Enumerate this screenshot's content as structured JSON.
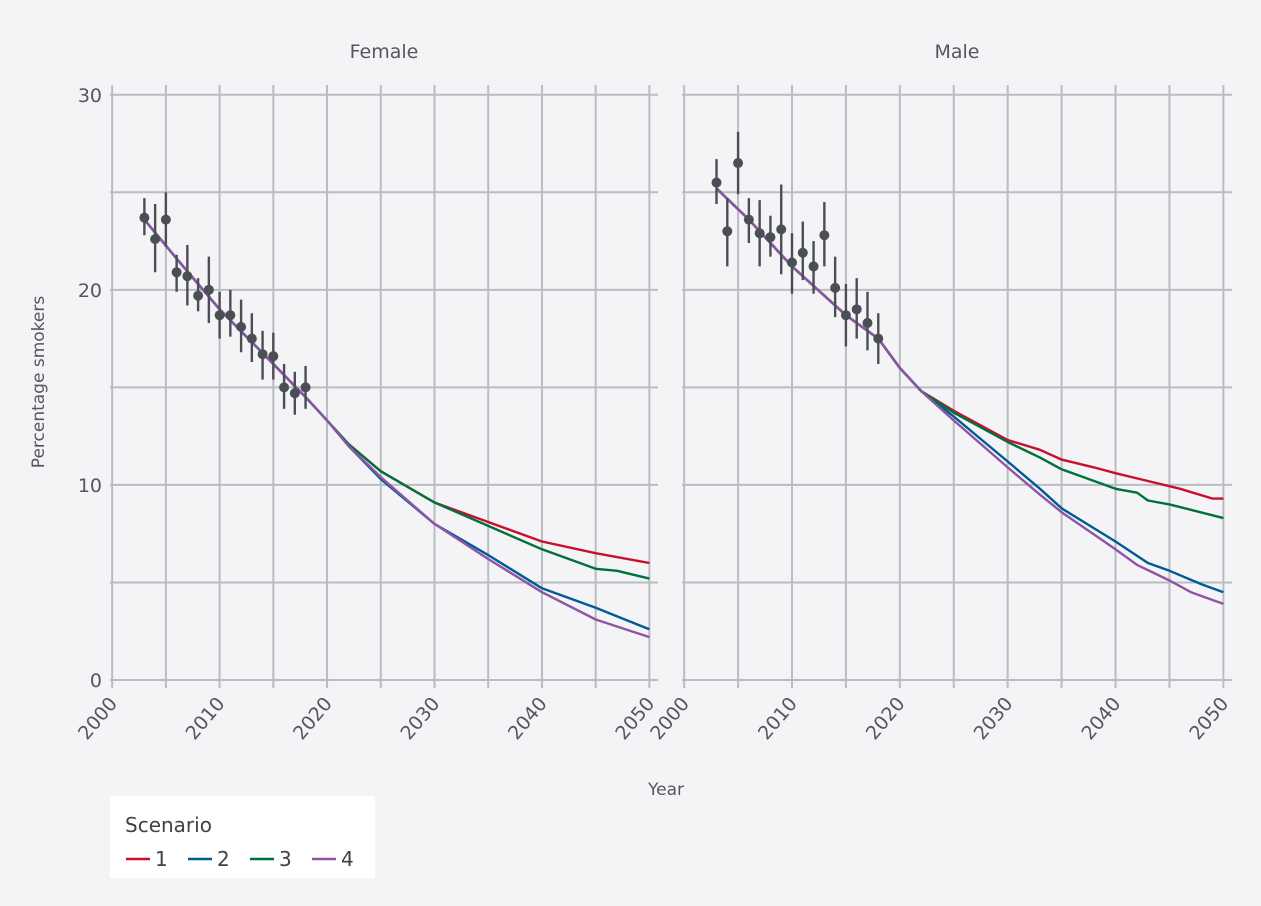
{
  "chart_data": {
    "type": "line",
    "ylabel": "Percentage smokers",
    "xlabel": "Year",
    "x_ticks": [
      2000,
      2010,
      2020,
      2030,
      2040,
      2050
    ],
    "y_ticks": [
      0,
      10,
      20,
      30
    ],
    "xlim": [
      1999.8,
      2050.8
    ],
    "ylim": [
      0,
      30.5
    ],
    "grid": true,
    "legend_position": "bottom-left",
    "legend": {
      "title": "Scenario",
      "entries": [
        {
          "name": "1",
          "color": "#c8102e"
        },
        {
          "name": "2",
          "color": "#005b94"
        },
        {
          "name": "3",
          "color": "#00703c"
        },
        {
          "name": "4",
          "color": "#8e55a5"
        }
      ]
    },
    "panels": [
      {
        "title": "Female",
        "observed": [
          {
            "x": 2003,
            "y": 23.7,
            "lo": 22.8,
            "hi": 24.7
          },
          {
            "x": 2004,
            "y": 22.6,
            "lo": 20.9,
            "hi": 24.4
          },
          {
            "x": 2005,
            "y": 23.6,
            "lo": 22.2,
            "hi": 25.0
          },
          {
            "x": 2006,
            "y": 20.9,
            "lo": 19.9,
            "hi": 21.8
          },
          {
            "x": 2007,
            "y": 20.7,
            "lo": 19.2,
            "hi": 22.3
          },
          {
            "x": 2008,
            "y": 19.7,
            "lo": 18.9,
            "hi": 20.6
          },
          {
            "x": 2009,
            "y": 20.0,
            "lo": 18.3,
            "hi": 21.7
          },
          {
            "x": 2010,
            "y": 18.7,
            "lo": 17.5,
            "hi": 19.9
          },
          {
            "x": 2011,
            "y": 18.7,
            "lo": 17.6,
            "hi": 20.0
          },
          {
            "x": 2012,
            "y": 18.1,
            "lo": 16.8,
            "hi": 19.5
          },
          {
            "x": 2013,
            "y": 17.5,
            "lo": 16.3,
            "hi": 18.8
          },
          {
            "x": 2014,
            "y": 16.7,
            "lo": 15.4,
            "hi": 17.9
          },
          {
            "x": 2015,
            "y": 16.6,
            "lo": 15.4,
            "hi": 17.8
          },
          {
            "x": 2016,
            "y": 15.0,
            "lo": 13.9,
            "hi": 16.2
          },
          {
            "x": 2017,
            "y": 14.7,
            "lo": 13.6,
            "hi": 15.8
          },
          {
            "x": 2018,
            "y": 15.0,
            "lo": 13.9,
            "hi": 16.1
          }
        ],
        "series": [
          {
            "name": "1",
            "points": [
              [
                2003,
                23.6
              ],
              [
                2006,
                21.6
              ],
              [
                2010,
                19.0
              ],
              [
                2015,
                16.2
              ],
              [
                2018,
                14.5
              ],
              [
                2020,
                13.3
              ],
              [
                2022,
                12.1
              ],
              [
                2025,
                10.7
              ],
              [
                2030,
                9.1
              ],
              [
                2035,
                8.1
              ],
              [
                2040,
                7.1
              ],
              [
                2045,
                6.5
              ],
              [
                2050,
                6.0
              ]
            ]
          },
          {
            "name": "2",
            "points": [
              [
                2003,
                23.6
              ],
              [
                2006,
                21.6
              ],
              [
                2010,
                19.0
              ],
              [
                2015,
                16.2
              ],
              [
                2018,
                14.5
              ],
              [
                2020,
                13.3
              ],
              [
                2022,
                12.0
              ],
              [
                2025,
                10.3
              ],
              [
                2030,
                8.0
              ],
              [
                2035,
                6.4
              ],
              [
                2040,
                4.7
              ],
              [
                2045,
                3.7
              ],
              [
                2050,
                2.6
              ]
            ]
          },
          {
            "name": "3",
            "points": [
              [
                2003,
                23.6
              ],
              [
                2006,
                21.6
              ],
              [
                2010,
                19.0
              ],
              [
                2015,
                16.2
              ],
              [
                2018,
                14.5
              ],
              [
                2020,
                13.3
              ],
              [
                2022,
                12.1
              ],
              [
                2025,
                10.7
              ],
              [
                2030,
                9.1
              ],
              [
                2035,
                7.9
              ],
              [
                2040,
                6.7
              ],
              [
                2045,
                5.7
              ],
              [
                2047,
                5.6
              ],
              [
                2050,
                5.2
              ]
            ]
          },
          {
            "name": "4",
            "points": [
              [
                2003,
                23.6
              ],
              [
                2006,
                21.6
              ],
              [
                2010,
                19.0
              ],
              [
                2015,
                16.2
              ],
              [
                2018,
                14.5
              ],
              [
                2020,
                13.3
              ],
              [
                2022,
                12.0
              ],
              [
                2025,
                10.4
              ],
              [
                2030,
                8.0
              ],
              [
                2035,
                6.2
              ],
              [
                2040,
                4.5
              ],
              [
                2045,
                3.1
              ],
              [
                2050,
                2.2
              ]
            ]
          }
        ]
      },
      {
        "title": "Male",
        "observed": [
          {
            "x": 2003,
            "y": 25.5,
            "lo": 24.4,
            "hi": 26.7
          },
          {
            "x": 2004,
            "y": 23.0,
            "lo": 21.2,
            "hi": 24.7
          },
          {
            "x": 2005,
            "y": 26.5,
            "lo": 24.9,
            "hi": 28.1
          },
          {
            "x": 2006,
            "y": 23.6,
            "lo": 22.4,
            "hi": 24.7
          },
          {
            "x": 2007,
            "y": 22.9,
            "lo": 21.2,
            "hi": 24.6
          },
          {
            "x": 2008,
            "y": 22.7,
            "lo": 21.7,
            "hi": 23.8
          },
          {
            "x": 2009,
            "y": 23.1,
            "lo": 20.8,
            "hi": 25.4
          },
          {
            "x": 2010,
            "y": 21.4,
            "lo": 19.8,
            "hi": 22.9
          },
          {
            "x": 2011,
            "y": 21.9,
            "lo": 20.5,
            "hi": 23.5
          },
          {
            "x": 2012,
            "y": 21.2,
            "lo": 19.8,
            "hi": 22.5
          },
          {
            "x": 2013,
            "y": 22.8,
            "lo": 21.2,
            "hi": 24.5
          },
          {
            "x": 2014,
            "y": 20.1,
            "lo": 18.6,
            "hi": 21.7
          },
          {
            "x": 2015,
            "y": 18.7,
            "lo": 17.1,
            "hi": 20.3
          },
          {
            "x": 2016,
            "y": 19.0,
            "lo": 17.5,
            "hi": 20.6
          },
          {
            "x": 2017,
            "y": 18.3,
            "lo": 16.9,
            "hi": 19.9
          },
          {
            "x": 2018,
            "y": 17.5,
            "lo": 16.2,
            "hi": 18.8
          }
        ],
        "series": [
          {
            "name": "1",
            "points": [
              [
                2003,
                25.2
              ],
              [
                2006,
                23.6
              ],
              [
                2010,
                21.2
              ],
              [
                2015,
                18.7
              ],
              [
                2018,
                17.5
              ],
              [
                2020,
                16.0
              ],
              [
                2022,
                14.8
              ],
              [
                2025,
                13.8
              ],
              [
                2030,
                12.3
              ],
              [
                2033,
                11.8
              ],
              [
                2035,
                11.3
              ],
              [
                2038,
                10.9
              ],
              [
                2040,
                10.6
              ],
              [
                2043,
                10.2
              ],
              [
                2046,
                9.8
              ],
              [
                2049,
                9.3
              ],
              [
                2050,
                9.3
              ]
            ]
          },
          {
            "name": "2",
            "points": [
              [
                2003,
                25.2
              ],
              [
                2006,
                23.6
              ],
              [
                2010,
                21.2
              ],
              [
                2015,
                18.7
              ],
              [
                2018,
                17.5
              ],
              [
                2020,
                16.0
              ],
              [
                2022,
                14.8
              ],
              [
                2025,
                13.5
              ],
              [
                2030,
                11.2
              ],
              [
                2033,
                9.8
              ],
              [
                2035,
                8.8
              ],
              [
                2040,
                7.1
              ],
              [
                2043,
                6.0
              ],
              [
                2045,
                5.6
              ],
              [
                2048,
                4.9
              ],
              [
                2050,
                4.5
              ]
            ]
          },
          {
            "name": "3",
            "points": [
              [
                2003,
                25.2
              ],
              [
                2006,
                23.6
              ],
              [
                2010,
                21.2
              ],
              [
                2015,
                18.7
              ],
              [
                2018,
                17.5
              ],
              [
                2020,
                16.0
              ],
              [
                2022,
                14.8
              ],
              [
                2025,
                13.7
              ],
              [
                2030,
                12.2
              ],
              [
                2033,
                11.4
              ],
              [
                2035,
                10.8
              ],
              [
                2040,
                9.8
              ],
              [
                2042,
                9.6
              ],
              [
                2043,
                9.2
              ],
              [
                2045,
                9.0
              ],
              [
                2050,
                8.3
              ]
            ]
          },
          {
            "name": "4",
            "points": [
              [
                2003,
                25.2
              ],
              [
                2006,
                23.6
              ],
              [
                2010,
                21.2
              ],
              [
                2015,
                18.7
              ],
              [
                2018,
                17.5
              ],
              [
                2020,
                16.0
              ],
              [
                2022,
                14.8
              ],
              [
                2025,
                13.3
              ],
              [
                2030,
                10.9
              ],
              [
                2033,
                9.5
              ],
              [
                2035,
                8.6
              ],
              [
                2040,
                6.7
              ],
              [
                2042,
                5.9
              ],
              [
                2045,
                5.1
              ],
              [
                2047,
                4.5
              ],
              [
                2050,
                3.9
              ]
            ]
          }
        ]
      }
    ]
  }
}
